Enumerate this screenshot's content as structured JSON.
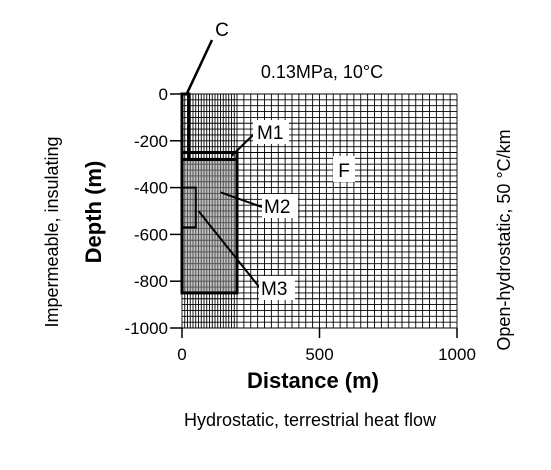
{
  "title": "0.13MPa, 10°C",
  "bottom_boundary": "Hydrostatic, terrestrial heat flow",
  "left_boundary": "Impermeable, insulating",
  "right_boundary": "Open-hydrostatic, 50 °C/km",
  "x_axis": {
    "label": "Distance (m)",
    "range": [
      0,
      1000
    ],
    "ticks": [
      "0",
      "500",
      "1000"
    ],
    "tick_values": [
      0,
      500,
      1000
    ]
  },
  "y_axis": {
    "label": "Depth (m)",
    "range": [
      0,
      -1000
    ],
    "ticks": [
      "0",
      "-200",
      "-400",
      "-600",
      "-800",
      "-1000"
    ],
    "tick_values": [
      0,
      -200,
      -400,
      -600,
      -800,
      -1000
    ]
  },
  "regions": {
    "C": {
      "label": "C",
      "x": [
        0,
        25
      ],
      "depth": [
        0,
        -280
      ]
    },
    "M1": {
      "label": "M1",
      "x": [
        0,
        200
      ],
      "depth": [
        -250,
        -280
      ]
    },
    "M2": {
      "label": "M2",
      "x": [
        0,
        50
      ],
      "depth": [
        -400,
        -570
      ]
    },
    "M3": {
      "label": "M3",
      "x": [
        0,
        200
      ],
      "depth": [
        -280,
        -850
      ]
    },
    "F": {
      "label": "F"
    }
  },
  "colors": {
    "line": "#000000",
    "fill": "#8c8c8c"
  }
}
